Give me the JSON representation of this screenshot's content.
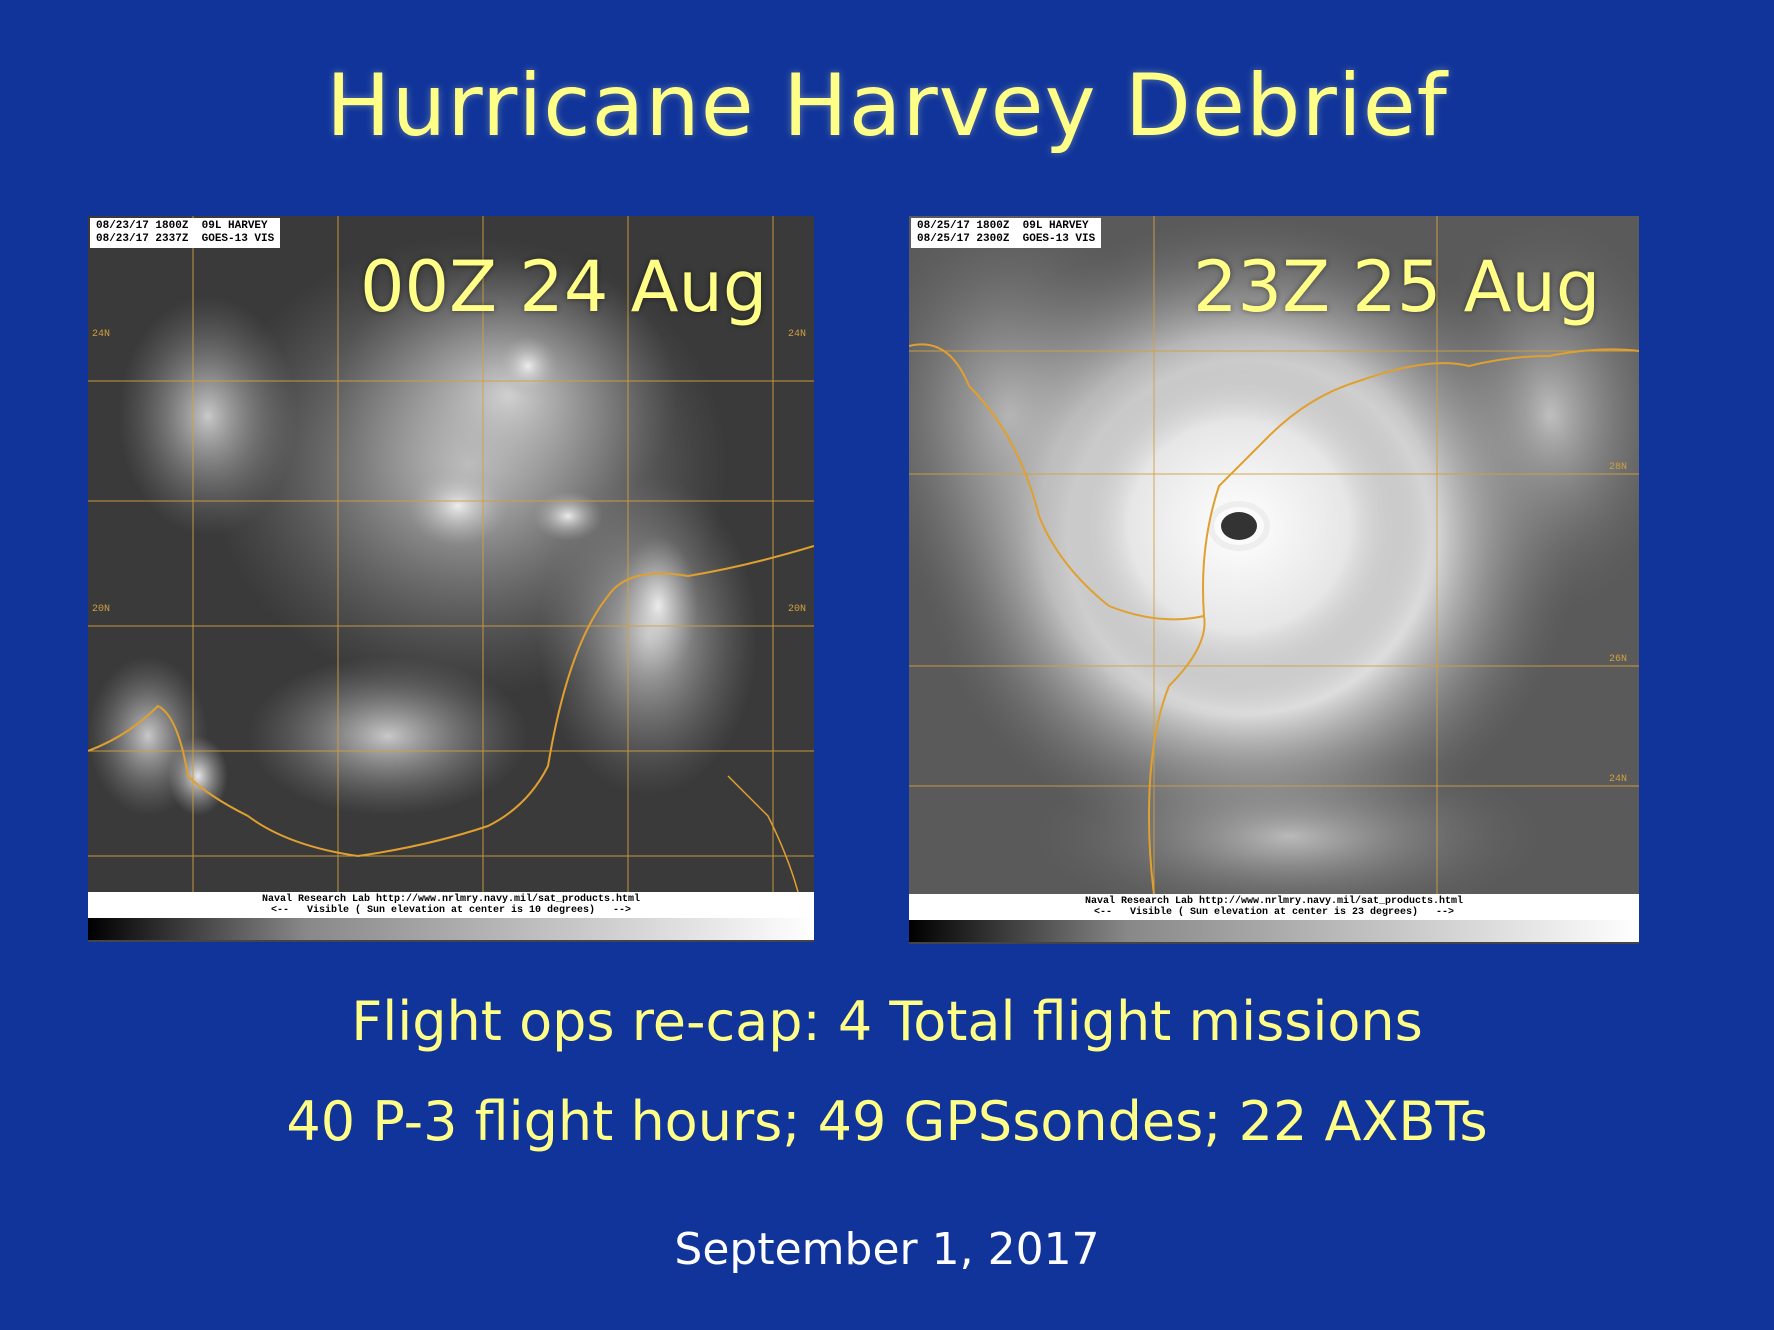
{
  "slide": {
    "title": "Hurricane Harvey Debrief",
    "colors": {
      "background": "#10349a",
      "title_text": "#ffff88",
      "body_text": "#ffff88",
      "date_text": "#ffffff",
      "map_lines": "#e0a030"
    }
  },
  "images": [
    {
      "header_line1": "08/23/17 1800Z  09L HARVEY",
      "header_line2": "08/23/17 2337Z  GOES-13 VIS",
      "overlay_label": "00Z 24 Aug",
      "footer_line1": "Naval Research Lab http://www.nrlmry.navy.mil/sat_products.html",
      "footer_line2": "<--   Visible ( Sun elevation at center is 10 degrees)   -->",
      "lat_labels": [
        "24N",
        "20N",
        "24N",
        "20N"
      ]
    },
    {
      "header_line1": "08/25/17 1800Z  09L HARVEY",
      "header_line2": "08/25/17 2300Z  GOES-13 VIS",
      "overlay_label": "23Z 25 Aug",
      "footer_line1": "Naval Research Lab http://www.nrlmry.navy.mil/sat_products.html",
      "footer_line2": "<--   Visible ( Sun elevation at center is 23 degrees)   -->",
      "lat_labels": [
        "28N",
        "26N",
        "24N"
      ]
    }
  ],
  "body": {
    "line1": "Flight ops re-cap: 4 Total flight missions",
    "line2": "40 P-3 flight hours; 49 GPSsondes; 22 AXBTs",
    "date": "September 1, 2017"
  }
}
